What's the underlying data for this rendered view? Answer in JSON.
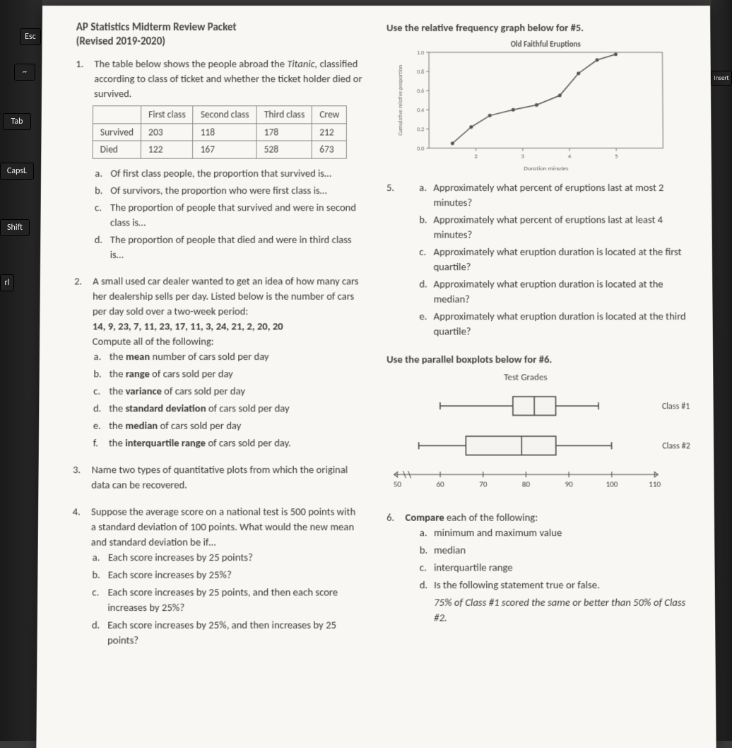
{
  "header": {
    "title": "AP Statistics Midterm Review Packet",
    "subtitle": "(Revised 2019-2020)"
  },
  "keys": {
    "esc": "Esc",
    "tilde": "~",
    "tab": "Tab",
    "caps": "CapsL",
    "shift": "Shift",
    "ctrl": "rl",
    "insert": "Insert"
  },
  "q1": {
    "num": "1.",
    "intro": "The table below shows the people abroad the Titanic, classified according to class of ticket and whether the ticket holder died or survived.",
    "table": {
      "cols": [
        "",
        "First class",
        "Second class",
        "Third class",
        "Crew"
      ],
      "rows": [
        [
          "Survived",
          "203",
          "118",
          "178",
          "212"
        ],
        [
          "Died",
          "122",
          "167",
          "528",
          "673"
        ]
      ]
    },
    "a": "Of first class people, the proportion that survived is…",
    "b": "Of survivors, the proportion who were first class is…",
    "c": "The proportion of people that survived and were in second class is…",
    "d": "The proportion of people that died and were in third class is…"
  },
  "q2": {
    "num": "2.",
    "intro": "A small used car dealer wanted to get an idea of how many cars her dealership sells per day. Listed below is the number of cars per day sold over a two-week period:",
    "data": "14, 9, 23, 7, 11, 23, 17, 11, 3, 24, 21, 2, 20, 20",
    "compute": "Compute all of the following:",
    "a": "the mean number of cars sold per day",
    "b": "the range of cars sold per day",
    "c": "the variance of cars sold per day",
    "d": "the standard deviation of cars sold per day",
    "e": "the median of cars sold per day",
    "f": "the interquartile range of cars sold per day.",
    "bold_a": "mean",
    "bold_b": "range",
    "bold_c": "variance",
    "bold_d": "standard deviation",
    "bold_e": "median",
    "bold_f": "interquartile range"
  },
  "q3": {
    "num": "3.",
    "text": "Name two types of quantitative plots from which the original data can be recovered."
  },
  "q4": {
    "num": "4.",
    "intro": "Suppose the average score on a national test is 500 points with a standard deviation of 100 points. What would the new mean and standard deviation be if…",
    "a": "Each score increases by 25 points?",
    "b": "Each score increases by 25%?",
    "c": "Each score increases by 25 points, and then each score increases by 25%?",
    "d": "Each score increases by 25%, and then increases by 25 points?"
  },
  "q5_prompt": "Use the relative frequency graph below for #5.",
  "q5_chart": {
    "title": "Old Faithful Eruptions",
    "xlabel": "Duration minutes",
    "ylabel": "Cumulative relative proportion",
    "xlim": [
      1,
      6
    ],
    "ylim": [
      0.0,
      1.0
    ],
    "xticks": [
      2,
      3,
      4,
      5
    ],
    "yticks": [
      "0.0",
      "0.2",
      "0.4",
      "0.6",
      "0.8",
      "1.0"
    ],
    "points": [
      [
        1.5,
        0.05
      ],
      [
        1.9,
        0.22
      ],
      [
        2.3,
        0.34
      ],
      [
        2.8,
        0.4
      ],
      [
        3.3,
        0.45
      ],
      [
        3.8,
        0.55
      ],
      [
        4.2,
        0.78
      ],
      [
        4.6,
        0.92
      ],
      [
        5.0,
        0.98
      ]
    ],
    "line_color": "#555555",
    "border_color": "#777777",
    "bg": "#f7f6f3",
    "font_size": 10
  },
  "q5": {
    "num": "5.",
    "a": "Approximately what percent of eruptions last at most 2 minutes?",
    "b": "Approximately what percent of eruptions last at least 4 minutes?",
    "c": "Approximately what eruption duration is located at the first quartile?",
    "d": "Approximately what eruption duration is located at the median?",
    "e": "Approximately what eruption duration is located at the third quartile?"
  },
  "q6_prompt": "Use the parallel boxplots below for #6.",
  "q6_chart": {
    "title": "Test Grades",
    "xmin": 50,
    "xmax": 110,
    "xticks": [
      50,
      60,
      70,
      80,
      90,
      100,
      110
    ],
    "class1": {
      "label": "Class #1",
      "min": 60,
      "q1": 77,
      "med": 82,
      "q3": 87,
      "max": 97
    },
    "class2": {
      "label": "Class #2",
      "min": 55,
      "q1": 66,
      "med": 79,
      "q3": 87,
      "max": 100
    },
    "line_color": "#444444",
    "fill": "#f5f4f0",
    "font_size": 12
  },
  "q6": {
    "num": "6.",
    "intro": "Compare each of the following:",
    "bold_compare": "Compare",
    "a": "minimum and maximum value",
    "b": "median",
    "c": "interquartile range",
    "d": "Is the following statement true or false.",
    "d2": "75% of Class #1 scored the same or better than 50% of Class #2."
  }
}
